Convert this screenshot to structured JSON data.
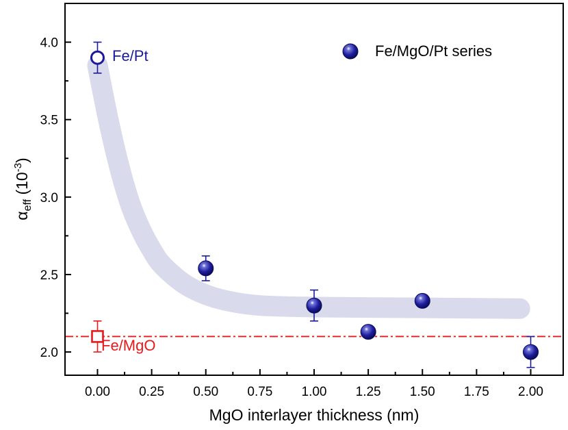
{
  "chart_data": {
    "type": "scatter",
    "xlabel": "MgO interlayer thickness (nm)",
    "ylabel": {
      "symbol": "α",
      "subscript": "eff",
      "unit_open": " (10",
      "unit_exp": "-3",
      "unit_close": ")"
    },
    "xlim": [
      -0.15,
      2.15
    ],
    "ylim": [
      1.85,
      4.25
    ],
    "x_ticks": [
      "0.00",
      "0.25",
      "0.50",
      "0.75",
      "1.00",
      "1.25",
      "1.50",
      "1.75",
      "2.00"
    ],
    "y_ticks": [
      "2.0",
      "2.5",
      "3.0",
      "3.5",
      "4.0"
    ],
    "grid": false,
    "legend": {
      "position": "top-right",
      "entries": [
        "Fe/MgO/Pt series"
      ]
    },
    "series": [
      {
        "name": "Fe/MgO/Pt series",
        "marker": "filled-sphere",
        "color": "#1a1a9a",
        "points": [
          {
            "x": 0.5,
            "y": 2.54,
            "err": 0.08
          },
          {
            "x": 1.0,
            "y": 2.3,
            "err": 0.1
          },
          {
            "x": 1.25,
            "y": 2.13,
            "err": 0.02
          },
          {
            "x": 1.5,
            "y": 2.33,
            "err": 0.02
          },
          {
            "x": 2.0,
            "y": 2.0,
            "err": 0.1
          }
        ]
      },
      {
        "name": "Fe/Pt",
        "marker": "open-circle",
        "color": "#1a1a9a",
        "points": [
          {
            "x": 0.0,
            "y": 3.9,
            "err": 0.1
          }
        ]
      },
      {
        "name": "Fe/MgO",
        "marker": "open-square",
        "color": "#e8191c",
        "points": [
          {
            "x": 0.0,
            "y": 2.1,
            "err": 0.1
          }
        ]
      }
    ],
    "reference_line": {
      "y": 2.1,
      "style": "dash-dot",
      "color": "#e8191c"
    },
    "guide_curve": {
      "color": "#d9daec",
      "points": [
        [
          0.0,
          3.85
        ],
        [
          0.05,
          3.5
        ],
        [
          0.1,
          3.2
        ],
        [
          0.15,
          2.96
        ],
        [
          0.2,
          2.79
        ],
        [
          0.25,
          2.66
        ],
        [
          0.3,
          2.56
        ],
        [
          0.4,
          2.44
        ],
        [
          0.5,
          2.37
        ],
        [
          0.6,
          2.33
        ],
        [
          0.75,
          2.3
        ],
        [
          1.0,
          2.29
        ],
        [
          1.5,
          2.285
        ],
        [
          1.95,
          2.28
        ]
      ]
    },
    "annotations": [
      {
        "text": "Fe/Pt",
        "x": 0.07,
        "y": 3.9,
        "color": "#1a1a9a"
      },
      {
        "text": "Fe/MgO",
        "x": 0.02,
        "y": 1.96,
        "color": "#e8191c"
      }
    ]
  }
}
